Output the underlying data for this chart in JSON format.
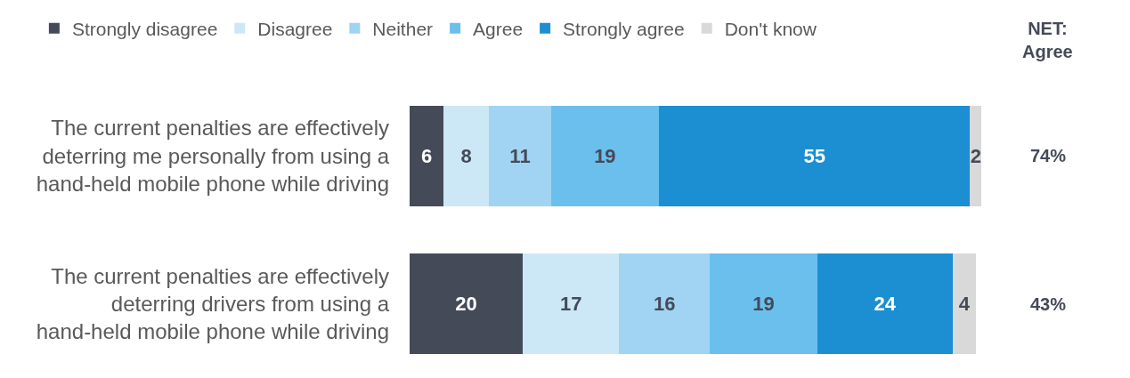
{
  "chart_data": {
    "type": "bar",
    "orientation": "horizontal",
    "stacked": true,
    "data_labels": true,
    "legend": "top",
    "categories": [
      "The current penalties are effectively deterring me personally from using a hand-held mobile phone while driving",
      "The current penalties are effectively deterring drivers from using a hand-held mobile phone while driving"
    ],
    "series": [
      {
        "name": "Strongly disagree",
        "color": "#444a58",
        "values": [
          6,
          20
        ]
      },
      {
        "name": "Disagree",
        "color": "#cce8f6",
        "values": [
          8,
          17
        ]
      },
      {
        "name": "Neither",
        "color": "#a0d4f2",
        "values": [
          11,
          16
        ]
      },
      {
        "name": "Agree",
        "color": "#6bbfec",
        "values": [
          19,
          19
        ]
      },
      {
        "name": "Strongly agree",
        "color": "#1b8fd2",
        "values": [
          55,
          24
        ]
      },
      {
        "name": "Don't know",
        "color": "#d9d9d9",
        "values": [
          2,
          4
        ]
      }
    ],
    "annotations": [
      "NET: Agree",
      "74%",
      "43%"
    ]
  }
}
